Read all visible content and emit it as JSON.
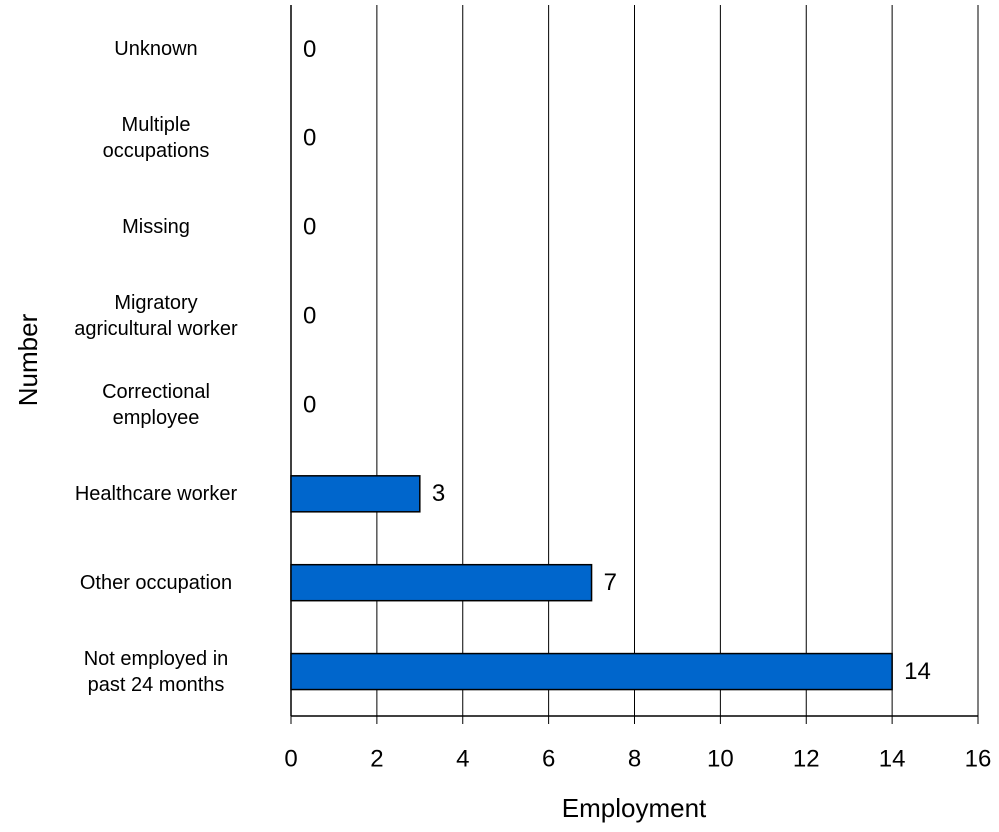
{
  "chart_data": {
    "type": "barh",
    "x_label": "Employment",
    "y_label": "Number",
    "categories": [
      "Unknown",
      "Multiple\noccupations",
      "Missing",
      "Migratory\nagricultural worker",
      "Correctional\nemployee",
      "Healthcare worker",
      "Other occupation",
      "Not employed in\npast 24 months"
    ],
    "values": [
      0,
      0,
      0,
      0,
      0,
      3,
      7,
      14
    ],
    "color": "#0066cc",
    "xlim": [
      0,
      16
    ],
    "xticks": [
      0,
      2,
      4,
      6,
      8,
      10,
      12,
      14,
      16
    ],
    "grid": true
  }
}
